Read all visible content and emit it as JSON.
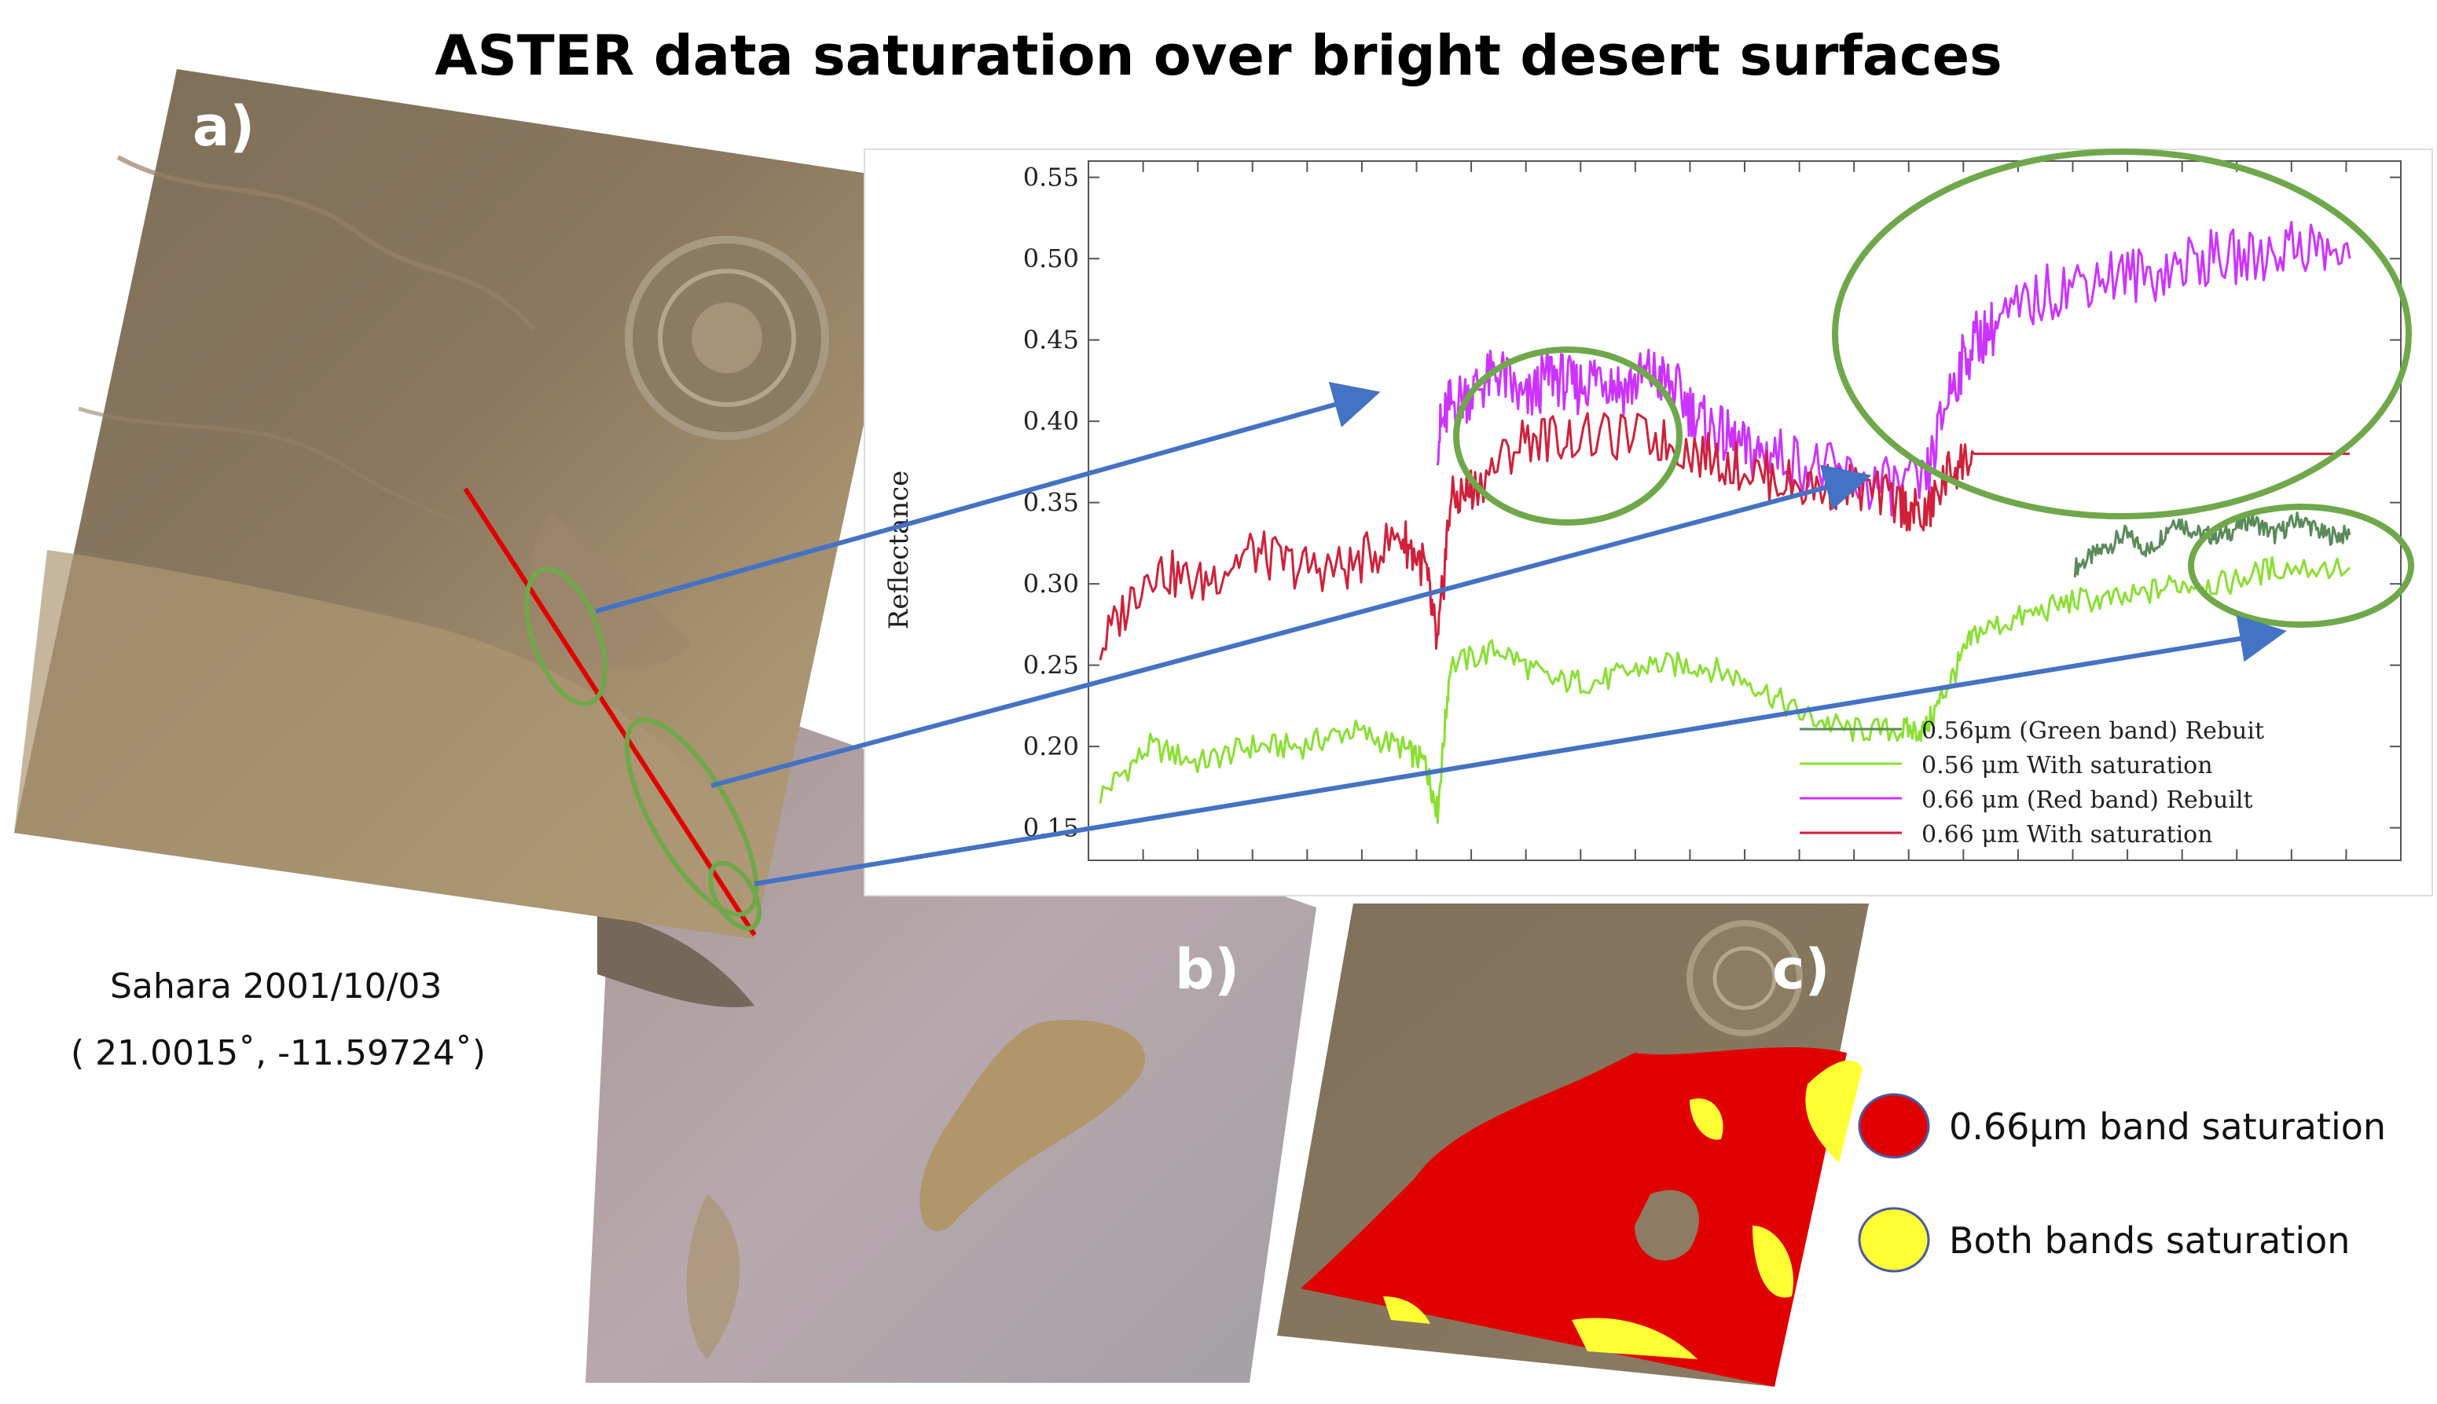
{
  "title": "ASTER data saturation over bright desert surfaces",
  "panels": {
    "a": "a)",
    "b": "b)",
    "c": "c)"
  },
  "location": {
    "scene": "Sahara 2001/10/03",
    "coords": "( 21.0015˚, -11.59724˚)"
  },
  "legend_map": {
    "red": "0.66μm band  saturation",
    "yellow": "Both bands  saturation"
  },
  "colors": {
    "sand": "#a48c69",
    "rock": "#80705a",
    "haze": "#b7a7ab",
    "saturation_red": "#e10000",
    "saturation_yellow": "#ffff33",
    "highlight": "#6fa84a",
    "arrow": "#4472c4",
    "transect": "#e00000"
  },
  "chart_data": {
    "type": "line",
    "ylabel": "Reflectance",
    "xlabel": "",
    "ylim": [
      0.13,
      0.56
    ],
    "yticks": [
      "0.55",
      "0.50",
      "0.45",
      "0.40",
      "0.35",
      "0.30",
      "0.25",
      "0.20",
      "0.15"
    ],
    "ytick_values": [
      0.55,
      0.5,
      0.45,
      0.4,
      0.35,
      0.3,
      0.25,
      0.2,
      0.15
    ],
    "series": [
      {
        "name": "0.56μm (Green band) Rebuit",
        "color": "#5a8a5a",
        "x": [
          0.78,
          0.8,
          0.82,
          0.84,
          0.86,
          0.88,
          0.9,
          0.92,
          0.94,
          0.96,
          0.98,
          1.0
        ],
        "values": [
          0.31,
          0.32,
          0.33,
          0.32,
          0.34,
          0.33,
          0.33,
          0.34,
          0.33,
          0.34,
          0.33,
          0.33
        ]
      },
      {
        "name": "0.56 μm With saturation",
        "color": "#88e030",
        "x": [
          0,
          0.04,
          0.08,
          0.12,
          0.16,
          0.2,
          0.24,
          0.26,
          0.27,
          0.28,
          0.32,
          0.36,
          0.4,
          0.44,
          0.48,
          0.52,
          0.56,
          0.6,
          0.64,
          0.66,
          0.68,
          0.7,
          0.74,
          0.78,
          0.82,
          0.86,
          0.9,
          0.94,
          1.0
        ],
        "values": [
          0.17,
          0.2,
          0.19,
          0.2,
          0.2,
          0.21,
          0.2,
          0.19,
          0.16,
          0.25,
          0.26,
          0.24,
          0.24,
          0.25,
          0.25,
          0.24,
          0.22,
          0.21,
          0.21,
          0.21,
          0.24,
          0.27,
          0.28,
          0.29,
          0.29,
          0.3,
          0.3,
          0.31,
          0.31
        ]
      },
      {
        "name": "0.66 μm (Red band) Rebuilt",
        "color": "#cc33ff",
        "x": [
          0.27,
          0.28,
          0.3,
          0.32,
          0.34,
          0.36,
          0.38,
          0.4,
          0.42,
          0.44,
          0.46,
          0.48,
          0.5,
          0.52,
          0.54,
          0.58,
          0.62,
          0.66,
          0.68,
          0.7,
          0.72,
          0.76,
          0.8,
          0.84,
          0.88,
          0.92,
          0.96,
          1.0
        ],
        "values": [
          0.39,
          0.41,
          0.42,
          0.43,
          0.41,
          0.43,
          0.42,
          0.43,
          0.42,
          0.43,
          0.42,
          0.4,
          0.39,
          0.38,
          0.38,
          0.37,
          0.36,
          0.36,
          0.42,
          0.45,
          0.46,
          0.48,
          0.49,
          0.49,
          0.5,
          0.5,
          0.51,
          0.5
        ]
      },
      {
        "name": "0.66 μm With saturation",
        "color": "#d0203a",
        "x": [
          0,
          0.04,
          0.08,
          0.12,
          0.16,
          0.2,
          0.24,
          0.26,
          0.27,
          0.28,
          0.3,
          0.34,
          0.38,
          0.44,
          0.48,
          0.52,
          0.56,
          0.6,
          0.64,
          0.66,
          0.68,
          0.7,
          1.0
        ],
        "values": [
          0.26,
          0.31,
          0.3,
          0.32,
          0.31,
          0.31,
          0.33,
          0.31,
          0.26,
          0.35,
          0.36,
          0.39,
          0.39,
          0.39,
          0.38,
          0.37,
          0.36,
          0.36,
          0.35,
          0.34,
          0.37,
          0.38,
          0.38
        ]
      }
    ]
  }
}
